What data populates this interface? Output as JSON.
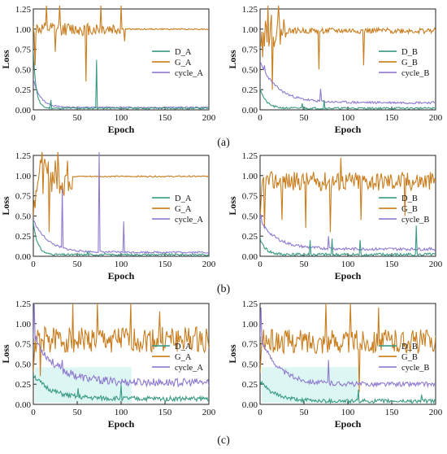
{
  "colors": {
    "d_series": "#3a9a82",
    "g_series": "#c87d1e",
    "cycle_series": "#8f7ad0",
    "g_series_b": "#a78f1e",
    "band_highlight_c": "#cdf2ef",
    "band_highlight_c2": "#ffd9f2"
  },
  "captions": [
    "(a)",
    "(b)",
    "(c)"
  ],
  "chart_data": [
    {
      "type": "line",
      "row": "a",
      "xlabel": "Epoch",
      "ylabel": "Loss",
      "xlim": [
        0,
        200
      ],
      "ylim": [
        0,
        1.25
      ],
      "xticks": [
        "0",
        "50",
        "100",
        "150",
        "200"
      ],
      "yticks": [
        "0.00",
        "0.25",
        "0.50",
        "0.75",
        "1.00",
        "1.25"
      ],
      "legend": "right-middle",
      "series": [
        {
          "name": "D_A",
          "color_key": "d_series",
          "base": 0.02,
          "noise": 0.01,
          "decay_start": 0.7,
          "decay_rate": 0.3,
          "seed": 11,
          "spikes": [
            [
              72,
              0.62
            ],
            [
              20,
              0.12
            ]
          ]
        },
        {
          "name": "G_A",
          "color_key": "g_series",
          "base": 1.0,
          "noise": 0.008,
          "rough_until": 100,
          "rough_noise": 0.08,
          "seed": 12,
          "spikes": [
            [
              2,
              0.55
            ],
            [
              15,
              1.3
            ],
            [
              25,
              0.72
            ],
            [
              30,
              1.3
            ],
            [
              60,
              0.35
            ],
            [
              77,
              1.3
            ],
            [
              100,
              1.3
            ],
            [
              104,
              0.85
            ]
          ]
        },
        {
          "name": "cycle_A",
          "color_key": "cycle_series",
          "base": 0.03,
          "noise": 0.008,
          "decay_start": 0.35,
          "decay_rate": 0.12,
          "seed": 13,
          "spikes": []
        }
      ]
    },
    {
      "type": "line",
      "row": "a",
      "xlabel": "Epoch",
      "ylabel": "Loss",
      "xlim": [
        0,
        200
      ],
      "ylim": [
        0,
        1.25
      ],
      "xticks": [
        "0",
        "50",
        "100",
        "150",
        "200"
      ],
      "yticks": [
        "0.00",
        "0.25",
        "0.50",
        "0.75",
        "1.00",
        "1.25"
      ],
      "legend": "right-middle",
      "series": [
        {
          "name": "D_B",
          "color_key": "d_series",
          "base": 0.02,
          "noise": 0.012,
          "decay_start": 0.25,
          "decay_rate": 0.15,
          "seed": 21,
          "spikes": [
            [
              48,
              0.08
            ],
            [
              73,
              0.12
            ]
          ]
        },
        {
          "name": "G_B",
          "color_key": "g_series",
          "base": 0.98,
          "noise": 0.035,
          "rough_until": 30,
          "rough_noise": 0.2,
          "seed": 22,
          "spikes": [
            [
              3,
              0.65
            ],
            [
              9,
              1.3
            ],
            [
              14,
              0.25
            ],
            [
              21,
              1.3
            ],
            [
              67,
              0.5
            ],
            [
              118,
              0.55
            ],
            [
              181,
              0.95
            ]
          ]
        },
        {
          "name": "cycle_B",
          "color_key": "cycle_series",
          "base": 0.09,
          "noise": 0.015,
          "decay_start": 0.5,
          "decay_rate": 0.05,
          "seed": 23,
          "spikes": [
            [
              5,
              0.55
            ],
            [
              69,
              0.26
            ]
          ]
        }
      ]
    },
    {
      "type": "line",
      "row": "b",
      "xlabel": "Epoch",
      "ylabel": "Loss",
      "xlim": [
        0,
        200
      ],
      "ylim": [
        0,
        1.25
      ],
      "xticks": [
        "0",
        "50",
        "100",
        "150",
        "200"
      ],
      "yticks": [
        "0.00",
        "0.25",
        "0.50",
        "0.75",
        "1.00",
        "1.25"
      ],
      "legend": "right-middle",
      "series": [
        {
          "name": "D_A",
          "color_key": "d_series",
          "base": 0.02,
          "noise": 0.012,
          "decay_start": 0.4,
          "decay_rate": 0.2,
          "seed": 31,
          "spikes": [
            [
              62,
              0.06
            ]
          ]
        },
        {
          "name": "G_A",
          "color_key": "g_series",
          "base": 0.99,
          "noise": 0.008,
          "rough_until": 45,
          "rough_noise": 0.22,
          "seed": 32,
          "spikes": [
            [
              2,
              0.6
            ],
            [
              10,
              1.3
            ],
            [
              18,
              0.3
            ],
            [
              28,
              1.3
            ],
            [
              35,
              0.75
            ],
            [
              42,
              0.85
            ]
          ]
        },
        {
          "name": "cycle_A",
          "color_key": "cycle_series",
          "base": 0.05,
          "noise": 0.012,
          "decay_start": 0.4,
          "decay_rate": 0.06,
          "seed": 33,
          "spikes": [
            [
              33,
              0.84
            ],
            [
              75,
              1.3
            ],
            [
              103,
              0.43
            ]
          ]
        }
      ]
    },
    {
      "type": "line",
      "row": "b",
      "xlabel": "Epoch",
      "ylabel": "Loss",
      "xlim": [
        0,
        200
      ],
      "ylim": [
        0,
        1.25
      ],
      "xticks": [
        "0",
        "50",
        "100",
        "150",
        "200"
      ],
      "yticks": [
        "0.00",
        "0.25",
        "0.50",
        "0.75",
        "1.00",
        "1.25"
      ],
      "legend": "right-middle",
      "series": [
        {
          "name": "D_B",
          "color_key": "d_series",
          "base": 0.02,
          "noise": 0.02,
          "decay_start": 0.2,
          "decay_rate": 0.15,
          "seed": 41,
          "spikes": [
            [
              57,
              0.2
            ],
            [
              82,
              0.22
            ],
            [
              114,
              0.2
            ],
            [
              178,
              0.38
            ]
          ]
        },
        {
          "name": "G_B",
          "color_key": "g_series",
          "base": 0.93,
          "noise": 0.07,
          "rough_until": 200,
          "rough_noise": 0.12,
          "seed": 42,
          "spikes": [
            [
              5,
              0.35
            ],
            [
              25,
              0.45
            ],
            [
              52,
              0.35
            ],
            [
              80,
              0.3
            ],
            [
              115,
              0.45
            ],
            [
              165,
              0.5
            ],
            [
              92,
              1.22
            ]
          ]
        },
        {
          "name": "cycle_B",
          "color_key": "cycle_series",
          "base": 0.09,
          "noise": 0.018,
          "decay_start": 0.35,
          "decay_rate": 0.05,
          "seed": 43,
          "spikes": [
            [
              1,
              0.52
            ],
            [
              78,
              0.25
            ]
          ]
        }
      ]
    },
    {
      "type": "line",
      "row": "c",
      "xlabel": "Epoch",
      "ylabel": "Loss",
      "xlim": [
        0,
        200
      ],
      "ylim": [
        0,
        1.25
      ],
      "xticks": [
        "0",
        "50",
        "100",
        "150",
        "200"
      ],
      "yticks": [
        "0.00",
        "0.25",
        "0.50",
        "0.75",
        "1.00",
        "1.25"
      ],
      "legend": "right-middle",
      "series": [
        {
          "name": "D_A",
          "color_key": "d_series",
          "base": 0.07,
          "noise": 0.03,
          "decay_start": 0.3,
          "decay_rate": 0.05,
          "seed": 51,
          "spikes": [
            [
              51,
              0.2
            ],
            [
              100,
              0.24
            ]
          ]
        },
        {
          "name": "G_A",
          "color_key": "g_series",
          "base": 0.8,
          "noise": 0.16,
          "rough_until": 0,
          "rough_noise": 0,
          "seed": 52,
          "spikes": [
            [
              8,
              0.35
            ],
            [
              45,
              1.25
            ],
            [
              73,
              1.25
            ],
            [
              111,
              1.25
            ],
            [
              144,
              1.15
            ]
          ]
        },
        {
          "name": "cycle_A",
          "color_key": "cycle_series",
          "base": 0.27,
          "noise": 0.05,
          "decay_start": 0.6,
          "decay_rate": 0.04,
          "seed": 53,
          "spikes": [
            [
              1,
              1.25
            ],
            [
              33,
              0.55
            ]
          ]
        }
      ]
    },
    {
      "type": "line",
      "row": "c",
      "xlabel": "Epoch",
      "ylabel": "Loss",
      "xlim": [
        0,
        200
      ],
      "ylim": [
        0,
        1.25
      ],
      "xticks": [
        "0",
        "50",
        "100",
        "150",
        "200"
      ],
      "yticks": [
        "0.00",
        "0.25",
        "0.50",
        "0.75",
        "1.00",
        "1.25"
      ],
      "legend": "right-middle",
      "series": [
        {
          "name": "D_B",
          "color_key": "d_series",
          "base": 0.04,
          "noise": 0.025,
          "decay_start": 0.25,
          "decay_rate": 0.06,
          "seed": 61,
          "spikes": [
            [
              112,
              0.18
            ],
            [
              184,
              0.12
            ]
          ]
        },
        {
          "name": "G_B",
          "color_key": "g_series",
          "base": 0.78,
          "noise": 0.15,
          "rough_until": 0,
          "rough_noise": 0,
          "seed": 62,
          "spikes": [
            [
              75,
              1.25
            ],
            [
              103,
              1.25
            ],
            [
              113,
              0.15
            ],
            [
              135,
              1.2
            ]
          ]
        },
        {
          "name": "cycle_B",
          "color_key": "cycle_series",
          "base": 0.25,
          "noise": 0.03,
          "decay_start": 0.6,
          "decay_rate": 0.05,
          "seed": 63,
          "spikes": [
            [
              78,
              0.55
            ],
            [
              1,
              1.2
            ]
          ]
        }
      ]
    }
  ]
}
